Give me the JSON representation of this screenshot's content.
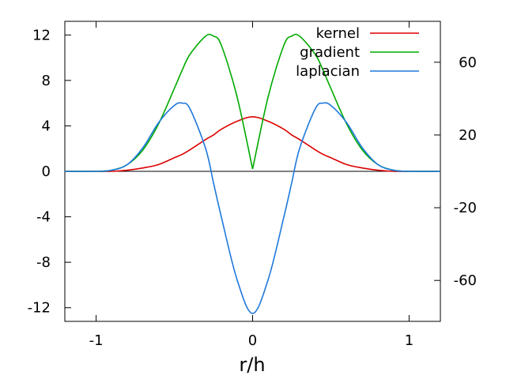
{
  "chart_data": {
    "type": "line",
    "title": "",
    "xlabel": "r/h",
    "ylabel": "",
    "x_ticks": [
      -1,
      0,
      1
    ],
    "xlim": [
      -1.2,
      1.2
    ],
    "ylim": [
      -13.2,
      13.2
    ],
    "y_ticks": [
      -12,
      -8,
      -4,
      0,
      4,
      8,
      12
    ],
    "y2lim": [
      -82.5,
      82.5
    ],
    "y2_ticks": [
      -60,
      -20,
      20,
      60
    ],
    "grid": false,
    "zero_line": true,
    "legend_position": "top-right",
    "x": [
      -1.0,
      -0.9,
      -0.8,
      -0.7,
      -0.6,
      -0.5,
      -0.45,
      -0.4,
      -0.3,
      -0.25,
      -0.2,
      -0.1,
      0.0,
      0.1,
      0.2,
      0.25,
      0.3,
      0.4,
      0.45,
      0.5,
      0.6,
      0.7,
      0.8,
      0.9,
      1.0
    ],
    "series": [
      {
        "name": "kernel",
        "color": "#dd0000",
        "axis": "left",
        "values": [
          0.0,
          0.0,
          0.1,
          0.3,
          0.6,
          1.2,
          1.5,
          1.9,
          2.8,
          3.2,
          3.7,
          4.4,
          4.8,
          4.4,
          3.7,
          3.2,
          2.8,
          1.9,
          1.5,
          1.2,
          0.6,
          0.3,
          0.1,
          0.0,
          0.0
        ]
      },
      {
        "name": "gradient",
        "color": "#00aa00",
        "axis": "left",
        "values": [
          0.0,
          0.1,
          0.6,
          1.9,
          4.2,
          7.3,
          8.9,
          10.3,
          11.9,
          11.9,
          11.1,
          6.6,
          0.2,
          6.6,
          11.1,
          11.9,
          11.9,
          10.3,
          8.9,
          7.3,
          4.2,
          1.9,
          0.6,
          0.1,
          0.0
        ]
      },
      {
        "name": "laplacian",
        "color": "#1e78dc",
        "axis": "left",
        "values": [
          0.0,
          0.1,
          0.6,
          2.1,
          4.3,
          5.8,
          6.0,
          5.5,
          2.0,
          -1.0,
          -4.0,
          -9.5,
          -12.5,
          -9.5,
          -4.0,
          -1.0,
          2.0,
          5.5,
          6.0,
          5.8,
          4.3,
          2.1,
          0.6,
          0.1,
          0.0
        ]
      }
    ]
  }
}
